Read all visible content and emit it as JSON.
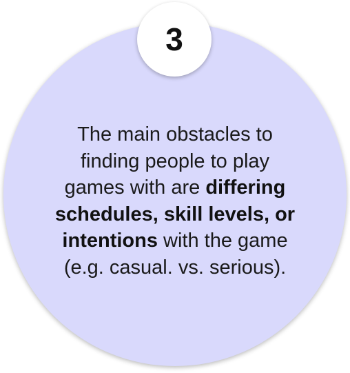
{
  "step": {
    "number": "3"
  },
  "text": {
    "lines": [
      [
        {
          "t": "The main obstacles to",
          "b": false
        }
      ],
      [
        {
          "t": "finding people to play",
          "b": false
        }
      ],
      [
        {
          "t": "games with are ",
          "b": false
        },
        {
          "t": "differing",
          "b": true
        }
      ],
      [
        {
          "t": "schedules, skill levels, or",
          "b": true
        }
      ],
      [
        {
          "t": "intentions",
          "b": true
        },
        {
          "t": " with the game",
          "b": false
        }
      ],
      [
        {
          "t": "(e.g. casual. vs. serious).",
          "b": false
        }
      ]
    ]
  },
  "colors": {
    "circle_fill": "#d9d9fc",
    "badge_fill": "#ffffff",
    "text": "#1a1a1a"
  }
}
